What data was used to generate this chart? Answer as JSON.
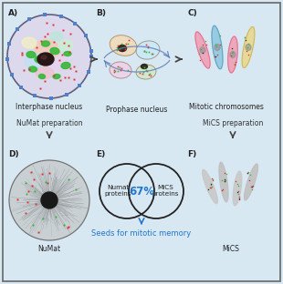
{
  "bg_color": "#d8e8f2",
  "border_color": "#666666",
  "numat_prep": "NuMat preparation",
  "mics_prep": "MiCS preparation",
  "seeds_text": "Seeds for mitotic memory",
  "seeds_color": "#2277cc",
  "overlap_pct": "67%",
  "venn_left_label": "Numat\nproteins",
  "venn_right_label": "MiCS\nproteins",
  "dot_red": "#e03030",
  "dot_green": "#38b838",
  "dot_dark": "#303030",
  "nucleolus_color": "#2a1515",
  "panel_A_label": "Interphase nucleus",
  "panel_B_label": "Prophase nucleus",
  "panel_C_label": "Mitotic chromosomes",
  "panel_D_label": "NuMat",
  "panel_F_label": "MiCS"
}
